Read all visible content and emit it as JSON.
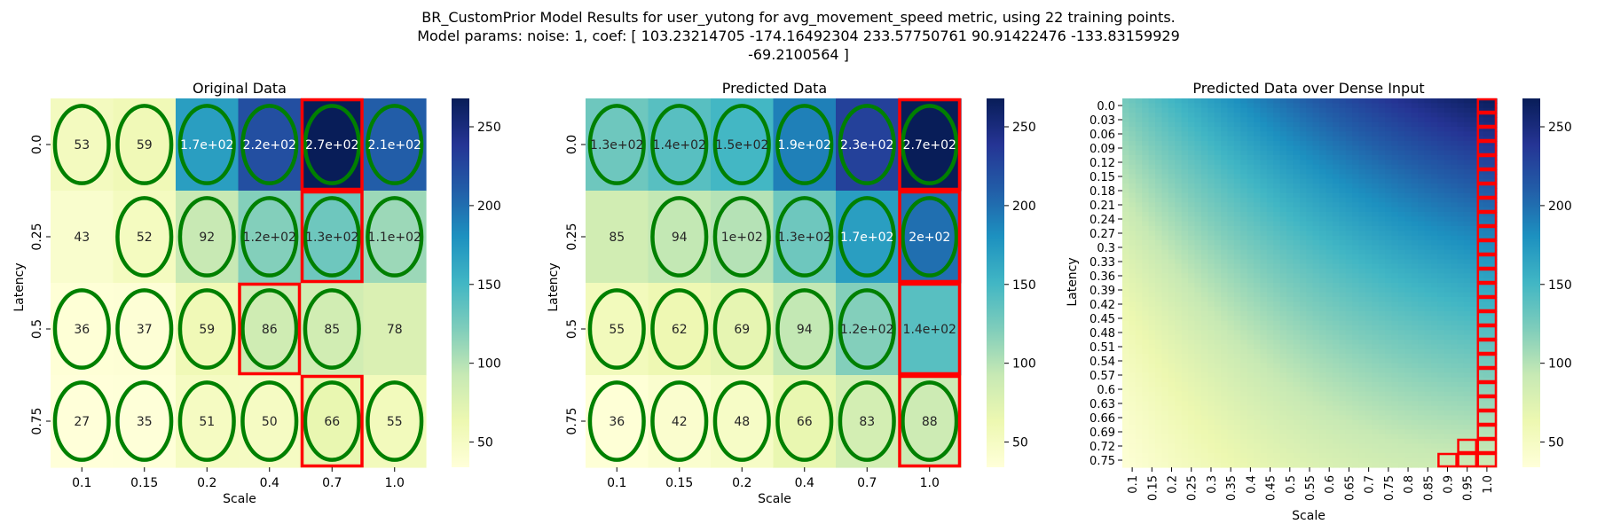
{
  "figure": {
    "title_lines": [
      "BR_CustomPrior Model Results for user_yutong for avg_movement_speed metric, using 22 training points.",
      "Model params: noise: 1, coef: [ 103.23214705 -174.16492304  233.57750761   90.91422476 -133.83159929",
      "-69.2100564 ]"
    ]
  },
  "colormap": {
    "name": "YlGnBu",
    "stops": [
      "#ffffd9",
      "#edf8b1",
      "#c7e9b4",
      "#7fcdbb",
      "#41b6c4",
      "#1d91c0",
      "#225ea8",
      "#253494",
      "#081d58"
    ],
    "vmin": 34,
    "vmax": 268
  },
  "colors": {
    "ellipse": "#008000",
    "highlight": "#ff0000",
    "text_dark": "#262626",
    "text_light": "#ffffff"
  },
  "chart_data": [
    {
      "type": "heatmap",
      "title": "Original Data",
      "xlabel": "Scale",
      "ylabel": "Latency",
      "x_categories": [
        "0.1",
        "0.15",
        "0.2",
        "0.4",
        "0.7",
        "1.0"
      ],
      "y_categories": [
        "0.0",
        "0.25",
        "0.5",
        "0.75"
      ],
      "values": [
        [
          53,
          59,
          170,
          220,
          268,
          210
        ],
        [
          43,
          52,
          92,
          120,
          130,
          110
        ],
        [
          36,
          37,
          59,
          86,
          85,
          78
        ],
        [
          27,
          35,
          51,
          50,
          66,
          55
        ]
      ],
      "labels": [
        [
          "53",
          "59",
          "1.7e+02",
          "2.2e+02",
          "2.7e+02",
          "2.1e+02"
        ],
        [
          "43",
          "52",
          "92",
          "1.2e+02",
          "1.3e+02",
          "1.1e+02"
        ],
        [
          "36",
          "37",
          "59",
          "86",
          "85",
          "78"
        ],
        [
          "27",
          "35",
          "51",
          "50",
          "66",
          "55"
        ]
      ],
      "ellipses": [
        [
          1,
          1,
          1,
          1,
          1,
          1
        ],
        [
          0,
          1,
          1,
          1,
          1,
          1
        ],
        [
          1,
          1,
          1,
          1,
          1,
          0
        ],
        [
          1,
          1,
          1,
          1,
          1,
          1
        ]
      ],
      "highlight_cells": [
        [
          0,
          4
        ],
        [
          1,
          4
        ],
        [
          2,
          3
        ],
        [
          3,
          4
        ]
      ],
      "colorbar_ticks": [
        50,
        100,
        150,
        200,
        250
      ]
    },
    {
      "type": "heatmap",
      "title": "Predicted Data",
      "xlabel": "Scale",
      "ylabel": "Latency",
      "x_categories": [
        "0.1",
        "0.15",
        "0.2",
        "0.4",
        "0.7",
        "1.0"
      ],
      "y_categories": [
        "0.0",
        "0.25",
        "0.5",
        "0.75"
      ],
      "values": [
        [
          130,
          140,
          150,
          190,
          230,
          268
        ],
        [
          85,
          94,
          100,
          130,
          170,
          200
        ],
        [
          55,
          62,
          69,
          94,
          120,
          140
        ],
        [
          36,
          42,
          48,
          66,
          83,
          88
        ]
      ],
      "labels": [
        [
          "1.3e+02",
          "1.4e+02",
          "1.5e+02",
          "1.9e+02",
          "2.3e+02",
          "2.7e+02"
        ],
        [
          "85",
          "94",
          "1e+02",
          "1.3e+02",
          "1.7e+02",
          "2e+02"
        ],
        [
          "55",
          "62",
          "69",
          "94",
          "1.2e+02",
          "1.4e+02"
        ],
        [
          "36",
          "42",
          "48",
          "66",
          "83",
          "88"
        ]
      ],
      "ellipses": [
        [
          1,
          1,
          1,
          1,
          1,
          1
        ],
        [
          0,
          1,
          1,
          1,
          1,
          1
        ],
        [
          1,
          1,
          1,
          1,
          1,
          0
        ],
        [
          1,
          1,
          1,
          1,
          1,
          1
        ]
      ],
      "highlight_cells": [
        [
          0,
          5
        ],
        [
          1,
          5
        ],
        [
          2,
          5
        ],
        [
          3,
          5
        ]
      ],
      "colorbar_ticks": [
        50,
        100,
        150,
        200,
        250
      ]
    },
    {
      "type": "heatmap",
      "title": "Predicted Data over Dense Input",
      "xlabel": "Scale",
      "ylabel": "Latency",
      "x_categories": [
        "0.1",
        "0.15",
        "0.2",
        "0.25",
        "0.3",
        "0.35",
        "0.4",
        "0.45",
        "0.5",
        "0.55",
        "0.6",
        "0.65",
        "0.7",
        "0.75",
        "0.8",
        "0.85",
        "0.9",
        "0.95",
        "1.0"
      ],
      "y_categories": [
        "0.0",
        "0.03",
        "0.06",
        "0.09",
        "0.12",
        "0.15",
        "0.18",
        "0.21",
        "0.24",
        "0.27",
        "0.3",
        "0.33",
        "0.36",
        "0.39",
        "0.42",
        "0.45",
        "0.48",
        "0.51",
        "0.54",
        "0.57",
        "0.6",
        "0.63",
        "0.66",
        "0.69",
        "0.72",
        "0.75"
      ],
      "model_coef": [
        103.23214705,
        -174.16492304,
        233.57750761,
        90.91422476,
        -133.83159929,
        -69.2100564
      ],
      "highlight_note": "column 1.0 outlined per row; lowest rows outline 0.95 and 0.9",
      "colorbar_ticks": [
        50,
        100,
        150,
        200,
        250
      ]
    }
  ]
}
